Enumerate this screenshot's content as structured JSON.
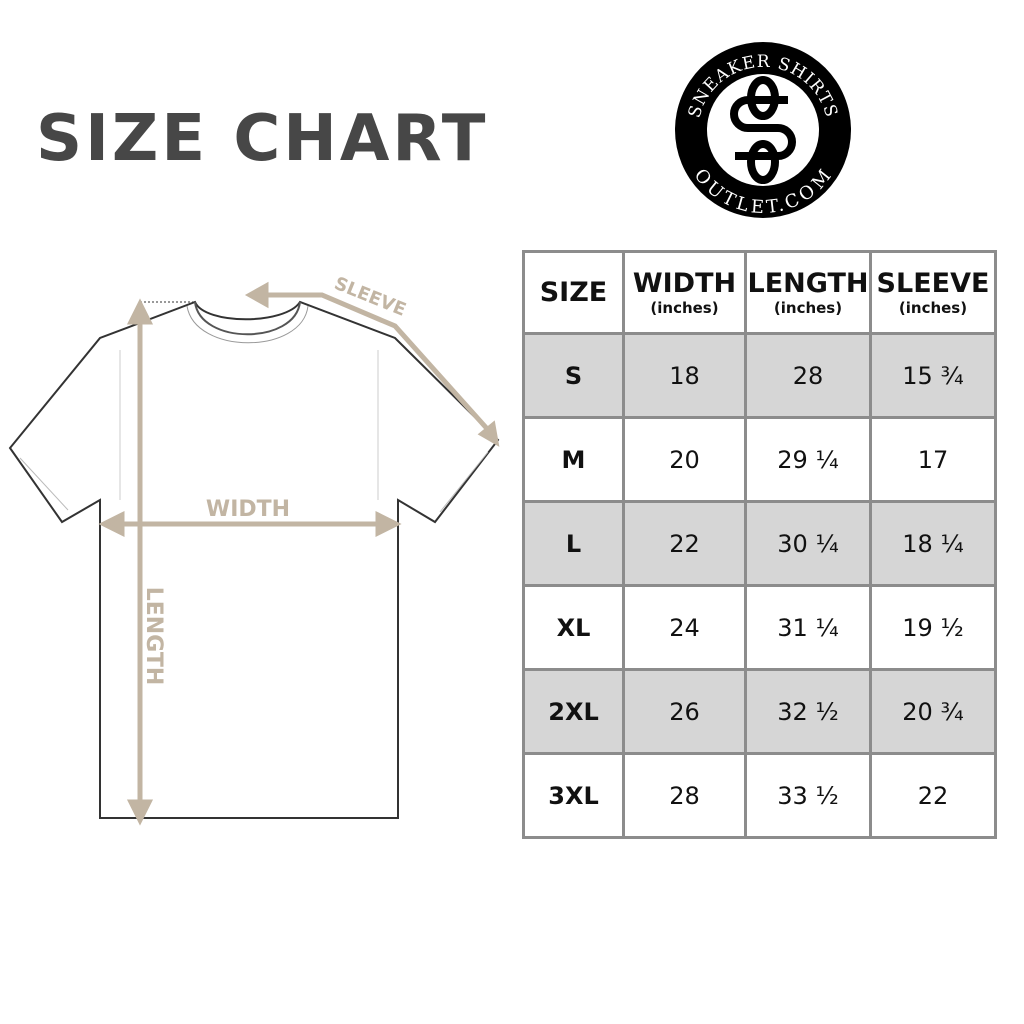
{
  "title": "SIZE CHART",
  "logo": {
    "top_text": "SNEAKER SHIRTS",
    "bottom_text": "OUTLET.COM",
    "monogram": "SS"
  },
  "diagram": {
    "sleeve_label": "SLEEVE",
    "width_label": "WIDTH",
    "length_label": "LENGTH",
    "accent_color": "#c2b5a3"
  },
  "table": {
    "headers": [
      {
        "label": "SIZE",
        "unit": ""
      },
      {
        "label": "WIDTH",
        "unit": "(inches)"
      },
      {
        "label": "LENGTH",
        "unit": "(inches)"
      },
      {
        "label": "SLEEVE",
        "unit": "(inches)"
      }
    ],
    "rows": [
      [
        "S",
        "18",
        "28",
        "15 ¾"
      ],
      [
        "M",
        "20",
        "29 ¼",
        "17"
      ],
      [
        "L",
        "22",
        "30 ¼",
        "18 ¼"
      ],
      [
        "XL",
        "24",
        "31 ¼",
        "19 ½"
      ],
      [
        "2XL",
        "26",
        "32 ½",
        "20 ¾"
      ],
      [
        "3XL",
        "28",
        "33 ½",
        "22"
      ]
    ]
  }
}
